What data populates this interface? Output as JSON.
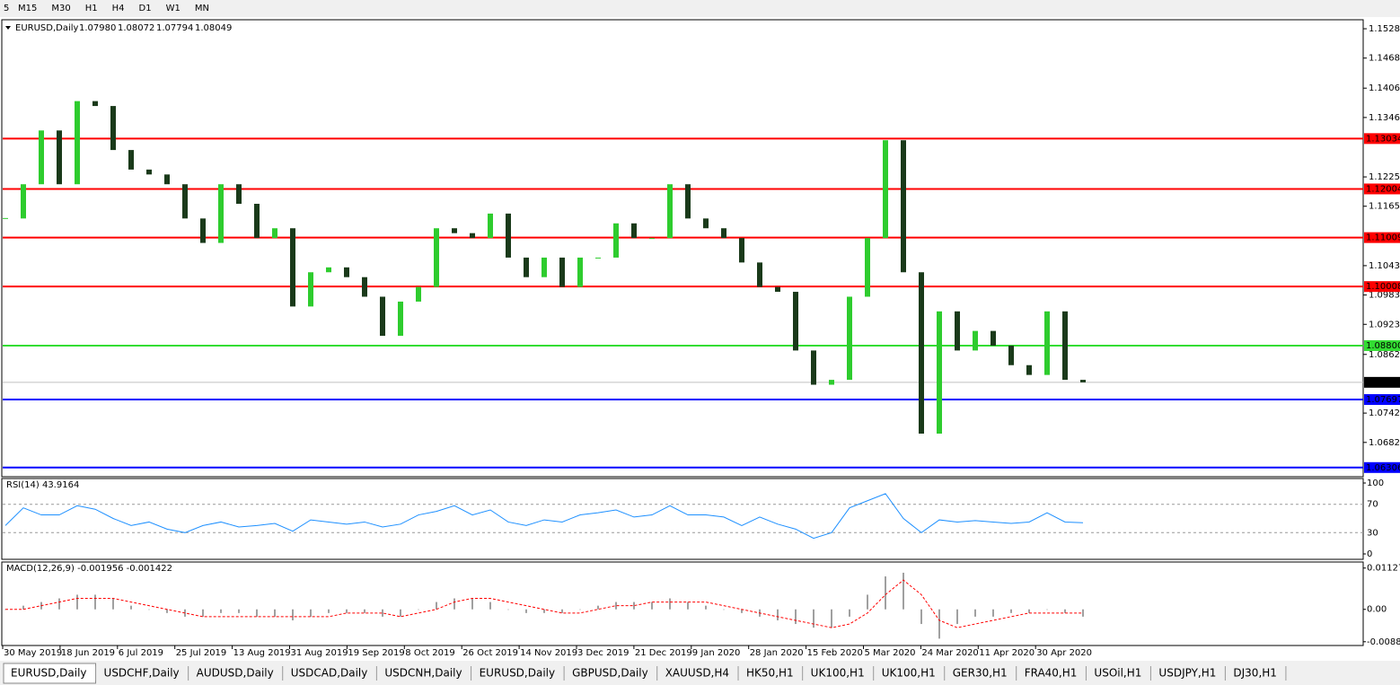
{
  "toolbar": {
    "timeframes": [
      "5",
      "M15",
      "M30",
      "H1",
      "H4",
      "D1",
      "W1",
      "MN"
    ]
  },
  "header": {
    "symbol": "EURUSD,Daily",
    "ohlc": [
      "1.07980",
      "1.08072",
      "1.07794",
      "1.08049"
    ]
  },
  "x_axis": {
    "labels": [
      "30 May 2019",
      "18 Jun 2019",
      "6 Jul 2019",
      "25 Jul 2019",
      "13 Aug 2019",
      "31 Aug 2019",
      "19 Sep 2019",
      "8 Oct 2019",
      "26 Oct 2019",
      "14 Nov 2019",
      "3 Dec 2019",
      "21 Dec 2019",
      "9 Jan 2020",
      "28 Jan 2020",
      "15 Feb 2020",
      "5 Mar 2020",
      "24 Mar 2020",
      "11 Apr 2020",
      "30 Apr 2020"
    ]
  },
  "chart_data": [
    {
      "type": "candlestick",
      "color_up": "#2ecc2e",
      "color_down": "#1a3a1a",
      "values": [
        1.114,
        1.121,
        1.132,
        1.121,
        1.138,
        1.137,
        1.128,
        1.124,
        1.123,
        1.121,
        1.114,
        1.109,
        1.121,
        1.117,
        1.11,
        1.112,
        1.096,
        1.103,
        1.104,
        1.102,
        1.098,
        1.09,
        1.097,
        1.1,
        1.112,
        1.111,
        1.11,
        1.115,
        1.106,
        1.102,
        1.106,
        1.1,
        1.106,
        1.106,
        1.113,
        1.11,
        1.11,
        1.121,
        1.114,
        1.112,
        1.11,
        1.105,
        1.1,
        1.099,
        1.087,
        1.08,
        1.081,
        1.098,
        1.11,
        1.13,
        1.103,
        1.07,
        1.095,
        1.087,
        1.091,
        1.088,
        1.084,
        1.082,
        1.095,
        1.081,
        1.08049
      ],
      "ylim": [
        1.06137,
        1.15464
      ],
      "yticks": [
        {
          "value": 1.1528,
          "label": "1.15280"
        },
        {
          "value": 1.1468,
          "label": "1.14680"
        },
        1.14065,
        1.13465,
        {
          "value": 1.1225,
          "label": "1.12250"
        },
        {
          "value": 1.1165,
          "label": "1.11650"
        },
        1.10435,
        1.09835,
        1.09235,
        {
          "value": 1.0862,
          "label": "1.08620"
        },
        {
          "value": 1.0742,
          "label": "1.07420"
        },
        {
          "value": 1.0682,
          "label": "1.06820"
        }
      ],
      "levels": [
        {
          "value": 1.13034,
          "color": "#ff0000"
        },
        {
          "value": 1.12004,
          "color": "#ff0000"
        },
        {
          "value": 1.11009,
          "color": "#ff0000"
        },
        {
          "value": 1.10008,
          "color": "#ff0000"
        },
        {
          "value": {
            "value": 1.088,
            "label": "1.08800"
          },
          "color": "#33dd33"
        },
        {
          "value": 1.07697,
          "color": "#0000ff"
        },
        {
          "value": 1.06306,
          "color": "#0000ff"
        },
        {
          "value": 1.08049,
          "color": "#c0c0c0",
          "label_color": "#000000"
        }
      ]
    },
    {
      "type": "line",
      "title": "RSI(14) 43.9164",
      "color": "#1e90ff",
      "values": [
        40,
        65,
        55,
        55,
        68,
        63,
        50,
        40,
        45,
        35,
        30,
        40,
        45,
        38,
        40,
        43,
        32,
        48,
        45,
        42,
        45,
        38,
        42,
        55,
        60,
        68,
        55,
        62,
        45,
        40,
        48,
        45,
        55,
        58,
        62,
        52,
        55,
        68,
        55,
        55,
        52,
        40,
        52,
        42,
        35,
        22,
        30,
        65,
        75,
        85,
        50,
        30,
        48,
        45,
        47,
        45,
        43,
        45,
        58,
        45,
        44
      ],
      "ylim": [
        0,
        100
      ],
      "yticks": [
        100,
        70,
        30,
        0
      ]
    },
    {
      "type": "macd",
      "title": "MACD(12,26,9) -0.001956 -0.001422",
      "color": "#a0a0a0",
      "signal_color": "#ff0000",
      "values": [
        0,
        0.001,
        0.002,
        0.003,
        0.004,
        0.004,
        0.003,
        0.001,
        0,
        -0.001,
        -0.002,
        -0.002,
        -0.001,
        -0.001,
        -0.002,
        -0.002,
        -0.003,
        -0.002,
        -0.001,
        -0.001,
        -0.001,
        -0.002,
        -0.002,
        0,
        0.002,
        0.003,
        0.003,
        0.002,
        0,
        -0.001,
        -0.001,
        -0.001,
        0,
        0.001,
        0.002,
        0.002,
        0.002,
        0.003,
        0.002,
        0.001,
        0,
        -0.001,
        -0.002,
        -0.003,
        -0.004,
        -0.005,
        -0.005,
        -0.002,
        0.004,
        0.009,
        0.01,
        -0.004,
        -0.008,
        -0.004,
        -0.002,
        -0.002,
        -0.001,
        -0.001,
        0,
        -0.001,
        -0.002
      ],
      "signal": [
        0,
        0,
        0.001,
        0.002,
        0.003,
        0.003,
        0.003,
        0.002,
        0.001,
        0,
        -0.001,
        -0.002,
        -0.002,
        -0.002,
        -0.002,
        -0.002,
        -0.002,
        -0.002,
        -0.002,
        -0.001,
        -0.001,
        -0.001,
        -0.002,
        -0.001,
        0,
        0.002,
        0.003,
        0.003,
        0.002,
        0.001,
        0,
        -0.001,
        -0.001,
        0,
        0.001,
        0.001,
        0.002,
        0.002,
        0.002,
        0.002,
        0.001,
        0,
        -0.001,
        -0.002,
        -0.003,
        -0.004,
        -0.005,
        -0.004,
        -0.001,
        0.004,
        0.008,
        0.004,
        -0.003,
        -0.005,
        -0.004,
        -0.003,
        -0.002,
        -0.001,
        -0.001,
        -0.001,
        -0.001
      ],
      "ylim": [
        -0.00987,
        0.01293
      ],
      "yticks": [
        0.011277,
        {
          "value": 0,
          "label": "0.00"
        },
        -0.00884
      ]
    }
  ],
  "tabs": [
    "EURUSD,Daily",
    "USDCHF,Daily",
    "AUDUSD,Daily",
    "USDCAD,Daily",
    "USDCNH,Daily",
    "EURUSD,Daily",
    "GBPUSD,Daily",
    "XAUUSD,H4",
    "HK50,H1",
    "UK100,H1",
    "UK100,H1",
    "GER30,H1",
    "FRA40,H1",
    "USOil,H1",
    "USDJPY,H1",
    "DJ30,H1"
  ]
}
